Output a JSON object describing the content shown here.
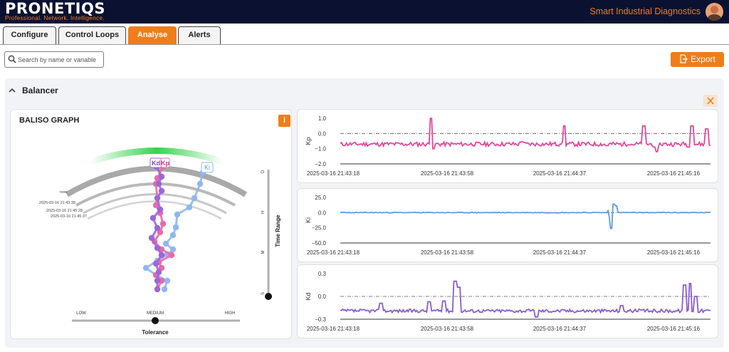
{
  "header": {
    "logo": "PRONETIQS",
    "tagline": "Professional. Network. Intelligence.",
    "app_title": "Smart Industrial Diagnostics"
  },
  "tabs": [
    {
      "label": "Configure",
      "active": false
    },
    {
      "label": "Control Loops",
      "active": false
    },
    {
      "label": "Analyse",
      "active": true
    },
    {
      "label": "Alerts",
      "active": false
    }
  ],
  "search": {
    "placeholder": "Search by name or variable",
    "value": ""
  },
  "export_label": "Export",
  "section": {
    "title": "Balancer"
  },
  "baliso": {
    "title": "BALISO GRAPH",
    "info_label": "i",
    "ring_labels": [
      "now",
      "2025-03-16 21:43:39",
      "2025-03-16 21:45:28",
      "2025-03-16 21:45:37"
    ],
    "series_labels": [
      "Kd",
      "Kp",
      "Ki"
    ],
    "time_range": {
      "label": "Time Range",
      "ticks": [
        "D",
        "H",
        "M",
        "S"
      ],
      "selected": "S"
    },
    "tolerance": {
      "label": "Tolerance",
      "options": [
        "LOW",
        "MEDIUM",
        "HIGH"
      ],
      "selected": "MEDIUM"
    }
  },
  "colors": {
    "accent": "#f07d1a",
    "header_bg": "#0b1231",
    "kp": "#e5479a",
    "ki": "#5f9be3",
    "kd": "#8a5cd0",
    "baliso_ki": "#8fb7f0",
    "baliso_kp": "#e86aa8",
    "baliso_kd": "#9a67d6",
    "arc_green": "#34d34d"
  },
  "chart_data": [
    {
      "type": "line",
      "ylabel": "Kp",
      "ylim": [
        -2.0,
        1.0
      ],
      "yticks": [
        "1.0",
        "0.0",
        "−1.0",
        "−2.0"
      ],
      "ytick_values": [
        1.0,
        0.0,
        -1.0,
        -2.0
      ],
      "reference_line": 0.0,
      "x_ticks": [
        "2025-03-16 21:43:18",
        "2025-03-16 21:43:58",
        "2025-03-16 21:44:37",
        "2025-03-16 21:45:16"
      ],
      "series": [
        {
          "color": "#e5479a",
          "baseline": -0.7,
          "noise": 0.14,
          "seed": 11,
          "spikes": [
            [
              0.245,
              1.0
            ],
            [
              0.252,
              -1.0
            ],
            [
              0.49,
              -0.55
            ],
            [
              0.595,
              -0.7
            ],
            [
              0.605,
              0.5
            ],
            [
              0.72,
              -0.8
            ],
            [
              0.78,
              -0.75
            ],
            [
              0.82,
              0.5
            ],
            [
              0.85,
              -0.9
            ],
            [
              0.855,
              -1.2
            ],
            [
              0.94,
              -0.9
            ],
            [
              0.95,
              0.5
            ],
            [
              0.99,
              0.3
            ]
          ]
        }
      ]
    },
    {
      "type": "line",
      "ylabel": "Ki",
      "ylim": [
        -50.0,
        25.0
      ],
      "yticks": [
        "25.0",
        "0.0",
        "−25.0",
        "−50.0"
      ],
      "ytick_values": [
        25.0,
        0.0,
        -25.0,
        -50.0
      ],
      "reference_line": 0.0,
      "x_ticks": [
        "2025-03-16 21:43:18",
        "2025-03-16 21:43:58",
        "2025-03-16 21:44:37",
        "2025-03-16 21:45:16"
      ],
      "series": [
        {
          "color": "#5f9be3",
          "baseline": 0.0,
          "noise": 0.6,
          "seed": 23,
          "spikes": [
            [
              0.725,
              3.0
            ],
            [
              0.73,
              -8.0
            ],
            [
              0.732,
              -26.0
            ],
            [
              0.74,
              14.0
            ],
            [
              0.745,
              11.0
            ]
          ]
        }
      ]
    },
    {
      "type": "line",
      "ylabel": "Kd",
      "ylim": [
        -0.3,
        0.3
      ],
      "yticks": [
        "0.3",
        "0.0",
        "−0.3"
      ],
      "ytick_values": [
        0.3,
        0.0,
        -0.3
      ],
      "reference_line": 0.0,
      "x_ticks": [
        "2025-03-16 21:43:18",
        "2025-03-16 21:43:58",
        "2025-03-16 21:44:37",
        "2025-03-16 21:45:16"
      ],
      "series": [
        {
          "color": "#8a5cd0",
          "baseline": -0.19,
          "noise": 0.022,
          "seed": 37,
          "spikes": [
            [
              0.11,
              -0.09
            ],
            [
              0.24,
              -0.07
            ],
            [
              0.28,
              -0.06
            ],
            [
              0.31,
              0.2
            ],
            [
              0.32,
              0.12
            ],
            [
              0.53,
              -0.27
            ],
            [
              0.76,
              -0.12
            ],
            [
              0.93,
              0.15
            ],
            [
              0.945,
              0.17
            ],
            [
              0.96,
              0.0
            ]
          ]
        }
      ]
    }
  ]
}
